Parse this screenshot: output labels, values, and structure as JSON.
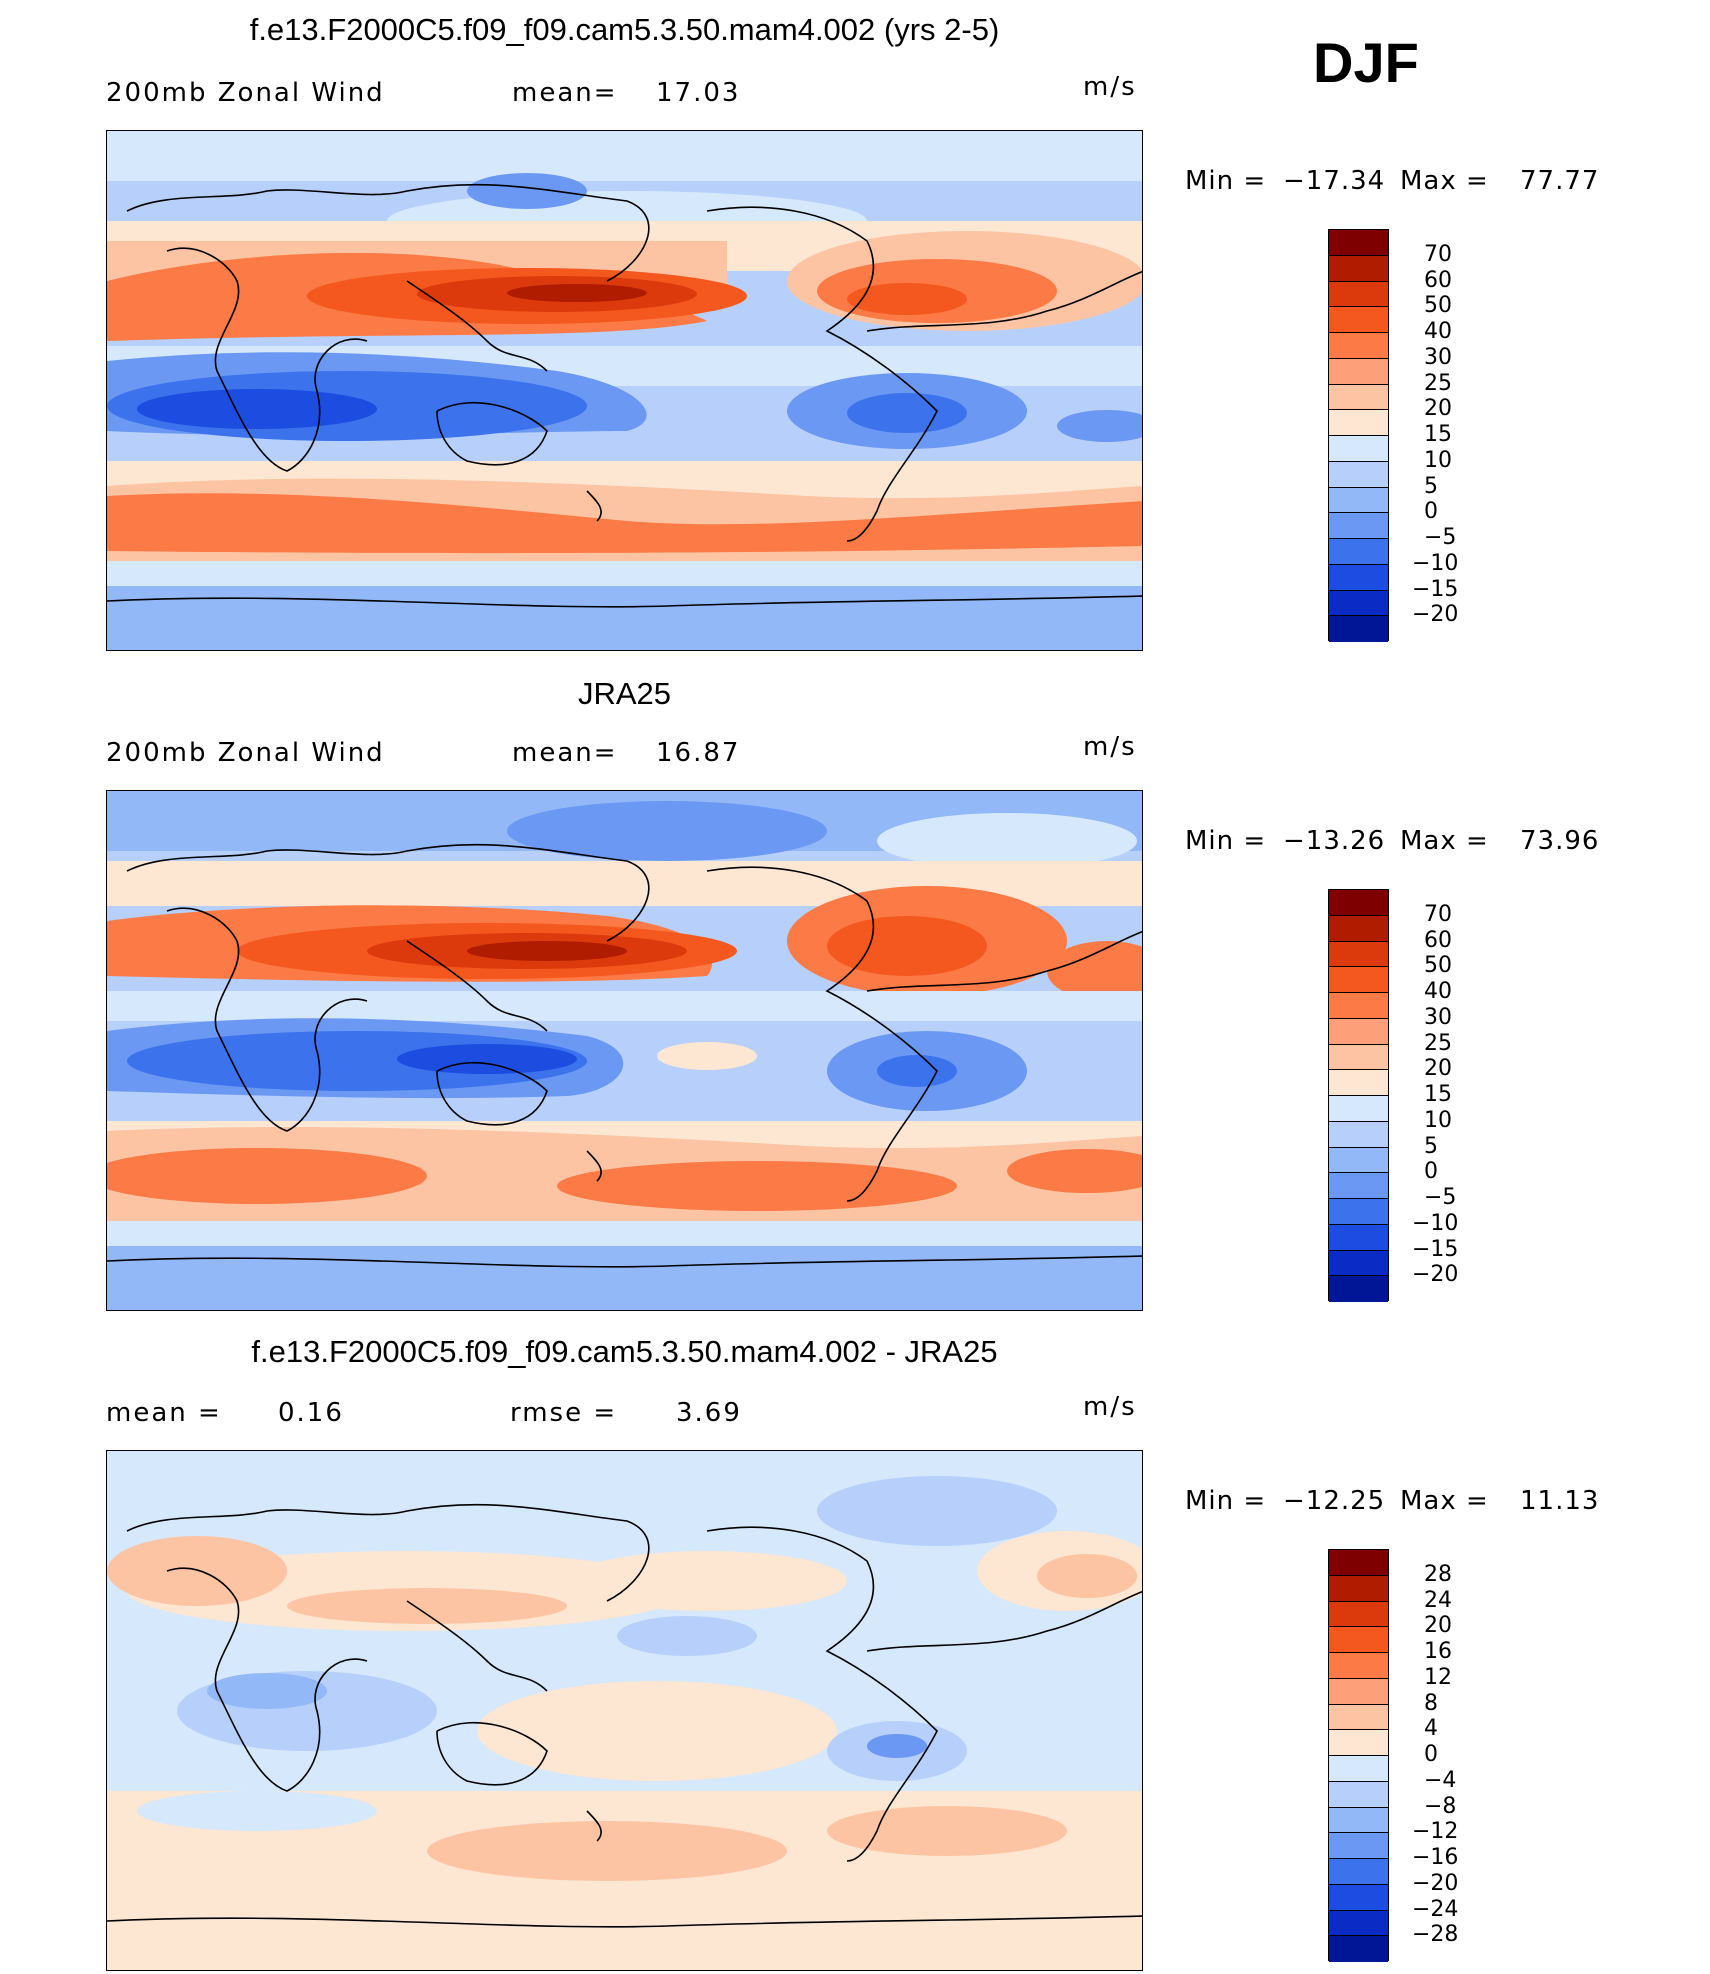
{
  "season": "DJF",
  "panels": [
    {
      "title": "f.e13.F2000C5.f09_f09.cam5.3.50.mam4.002 (yrs 2-5)",
      "left_label": "200mb Zonal Wind",
      "mid_label": "mean=",
      "mid_value": "17.03",
      "units": "m/s",
      "min_label": "Min =",
      "min_value": "−17.34",
      "max_label": "Max =",
      "max_value": "77.77",
      "colorbar_labels": [
        "70",
        "60",
        "50",
        "40",
        "30",
        "25",
        "20",
        "15",
        "10",
        "5",
        "0",
        "−5",
        "−10",
        "−15",
        "−20"
      ]
    },
    {
      "title": "JRA25",
      "left_label": "200mb Zonal Wind",
      "mid_label": "mean=",
      "mid_value": "16.87",
      "units": "m/s",
      "min_label": "Min =",
      "min_value": "−13.26",
      "max_label": "Max =",
      "max_value": "73.96",
      "colorbar_labels": [
        "70",
        "60",
        "50",
        "40",
        "30",
        "25",
        "20",
        "15",
        "10",
        "5",
        "0",
        "−5",
        "−10",
        "−15",
        "−20"
      ]
    },
    {
      "title": "f.e13.F2000C5.f09_f09.cam5.3.50.mam4.002 - JRA25",
      "left_label": "mean =",
      "left_value": "0.16",
      "mid_label": "rmse =",
      "mid_value": "3.69",
      "units": "m/s",
      "min_label": "Min =",
      "min_value": "−12.25",
      "max_label": "Max =",
      "max_value": "11.13",
      "colorbar_labels": [
        "28",
        "24",
        "20",
        "16",
        "12",
        "8",
        "4",
        "0",
        "−4",
        "−8",
        "−12",
        "−16",
        "−20",
        "−24",
        "−28"
      ]
    }
  ],
  "colorbar_colors": [
    "#7f0000",
    "#b01c00",
    "#dc3a0d",
    "#f5581e",
    "#fc7a45",
    "#fda07a",
    "#fdc4a4",
    "#fde6d2",
    "#d6e8fc",
    "#b6d0fb",
    "#92b8f7",
    "#6b98f2",
    "#3c73ec",
    "#1d4de0",
    "#0a2cc4",
    "#001696"
  ]
}
